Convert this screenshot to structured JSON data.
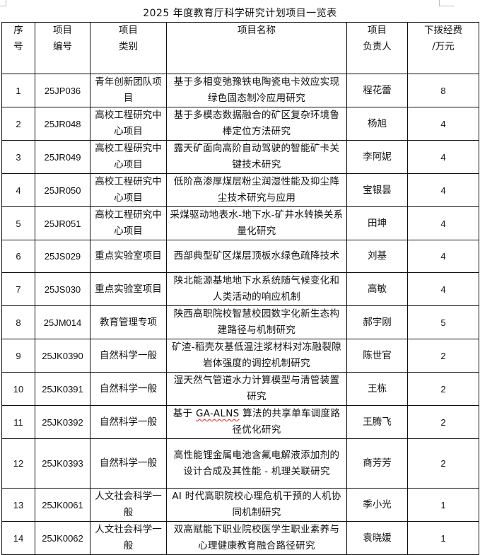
{
  "title": "2025 年度教育厅科学研究计划项目一览表",
  "headers": {
    "seq": [
      "序",
      "号"
    ],
    "code": [
      "项目",
      "编号"
    ],
    "category": [
      "项目",
      "类别"
    ],
    "name": "项目名称",
    "leader": [
      "项目",
      "负责人"
    ],
    "funding": [
      "下拨经费",
      "/万元"
    ]
  },
  "rows": [
    {
      "seq": "1",
      "code": "25JP036",
      "category": "青年创新团队项目",
      "name": "基于多相变弛豫铁电陶瓷电卡效应实现绿色固态制冷应用研究",
      "leader": "程花蕾",
      "funding": "8"
    },
    {
      "seq": "2",
      "code": "25JR048",
      "category": "高校工程研究中心项目",
      "name": "基于多模态数据融合的矿区复杂环境鲁棒定位方法研究",
      "leader": "杨旭",
      "funding": "4"
    },
    {
      "seq": "3",
      "code": "25JR049",
      "category": "高校工程研究中心项目",
      "name": "露天矿面向高阶自动驾驶的智能矿卡关键技术研究",
      "leader": "李阿妮",
      "funding": "4"
    },
    {
      "seq": "4",
      "code": "25JR050",
      "category": "高校工程研究中心项目",
      "name": "低阶高渗厚煤层粉尘润湿性能及抑尘降尘技术研究与应用",
      "leader": "宝银昙",
      "funding": "4"
    },
    {
      "seq": "5",
      "code": "25JR051",
      "category": "高校工程研究中心项目",
      "name": "采煤驱动地表水-地下水-矿井水转换关系量化研究",
      "leader": "田坤",
      "funding": "4"
    },
    {
      "seq": "6",
      "code": "25JS029",
      "category": "重点实验室项目",
      "name": "西部典型矿区煤层顶板水绿色疏降技术",
      "leader": "刘基",
      "funding": "4"
    },
    {
      "seq": "7",
      "code": "25JS030",
      "category": "重点实验室项目",
      "name": "陕北能源基地地下水系统随气候变化和人类活动的响应机制",
      "leader": "高敏",
      "funding": "4"
    },
    {
      "seq": "8",
      "code": "25JM014",
      "category": "教育管理专项",
      "name": "陕西高职院校智慧校园数字化新生态构建路径与机制研究",
      "leader": "郝宇刚",
      "funding": "5"
    },
    {
      "seq": "9",
      "code": "25JK0390",
      "category": "自然科学一般",
      "name": "矿渣-稻壳灰基低温注浆材料对冻融裂隙岩体强度的调控机制研究",
      "leader": "陈世官",
      "funding": "2"
    },
    {
      "seq": "10",
      "code": "25JK0391",
      "category": "自然科学一般",
      "name": "湿天然气管道水力计算模型与清管装置研究",
      "leader": "王栋",
      "funding": "2"
    },
    {
      "seq": "11",
      "code": "25JK0392",
      "category": "自然科学一般",
      "name_pre": "基于 ",
      "name_mark": "GA-ALNS",
      "name_post": " 算法的共享单车调度路径优化研究",
      "leader": "王腾飞",
      "funding": "2"
    },
    {
      "seq": "12",
      "code": "25JK0393",
      "category": "自然科学一般",
      "name": "高性能锂金属电池含氟电解液添加剂的设计合成及其性能 - 机理关联研究",
      "leader": "商芳芳",
      "funding": "2"
    },
    {
      "seq": "13",
      "code": "25JK0061",
      "category": "人文社会科学一般",
      "name": "AI 时代高职院校心理危机干预的人机协同机制研究",
      "leader": "季小光",
      "funding": "1"
    },
    {
      "seq": "14",
      "code": "25JK0062",
      "category": "人文社会科学一般",
      "name": "双高赋能下职业院校医学生职业素养与心理健康教育融合路径研究",
      "leader": "袁晓媛",
      "funding": "1"
    }
  ]
}
